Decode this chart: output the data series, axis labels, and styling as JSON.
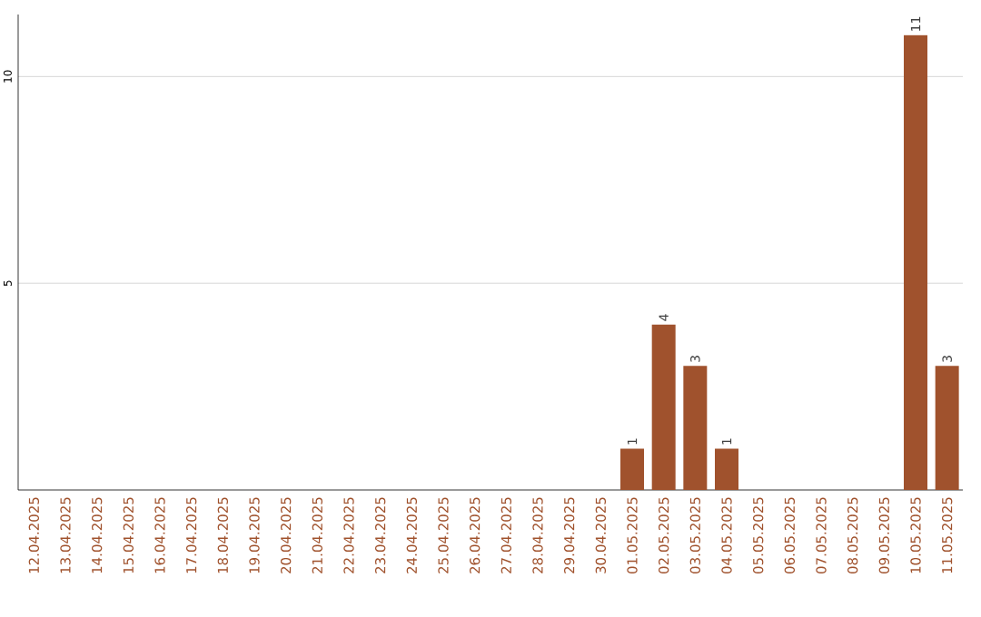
{
  "chart_data": {
    "type": "bar",
    "categories": [
      "12.04.2025",
      "13.04.2025",
      "14.04.2025",
      "15.04.2025",
      "16.04.2025",
      "17.04.2025",
      "18.04.2025",
      "19.04.2025",
      "20.04.2025",
      "21.04.2025",
      "22.04.2025",
      "23.04.2025",
      "24.04.2025",
      "25.04.2025",
      "26.04.2025",
      "27.04.2025",
      "28.04.2025",
      "29.04.2025",
      "30.04.2025",
      "01.05.2025",
      "02.05.2025",
      "03.05.2025",
      "04.05.2025",
      "05.05.2025",
      "06.05.2025",
      "07.05.2025",
      "08.05.2025",
      "09.05.2025",
      "10.05.2025",
      "11.05.2025"
    ],
    "values": [
      0,
      0,
      0,
      0,
      0,
      0,
      0,
      0,
      0,
      0,
      0,
      0,
      0,
      0,
      0,
      0,
      0,
      0,
      0,
      1,
      4,
      3,
      1,
      0,
      0,
      0,
      0,
      0,
      11,
      3
    ],
    "value_labels": [
      null,
      null,
      null,
      null,
      null,
      null,
      null,
      null,
      null,
      null,
      null,
      null,
      null,
      null,
      null,
      null,
      null,
      null,
      null,
      "1",
      "4",
      "3",
      "1",
      null,
      null,
      null,
      null,
      null,
      "11",
      "3"
    ],
    "color": "#a0522d",
    "ylim": [
      0,
      11.5
    ],
    "yticks": [
      5,
      10
    ],
    "grid": "y"
  }
}
